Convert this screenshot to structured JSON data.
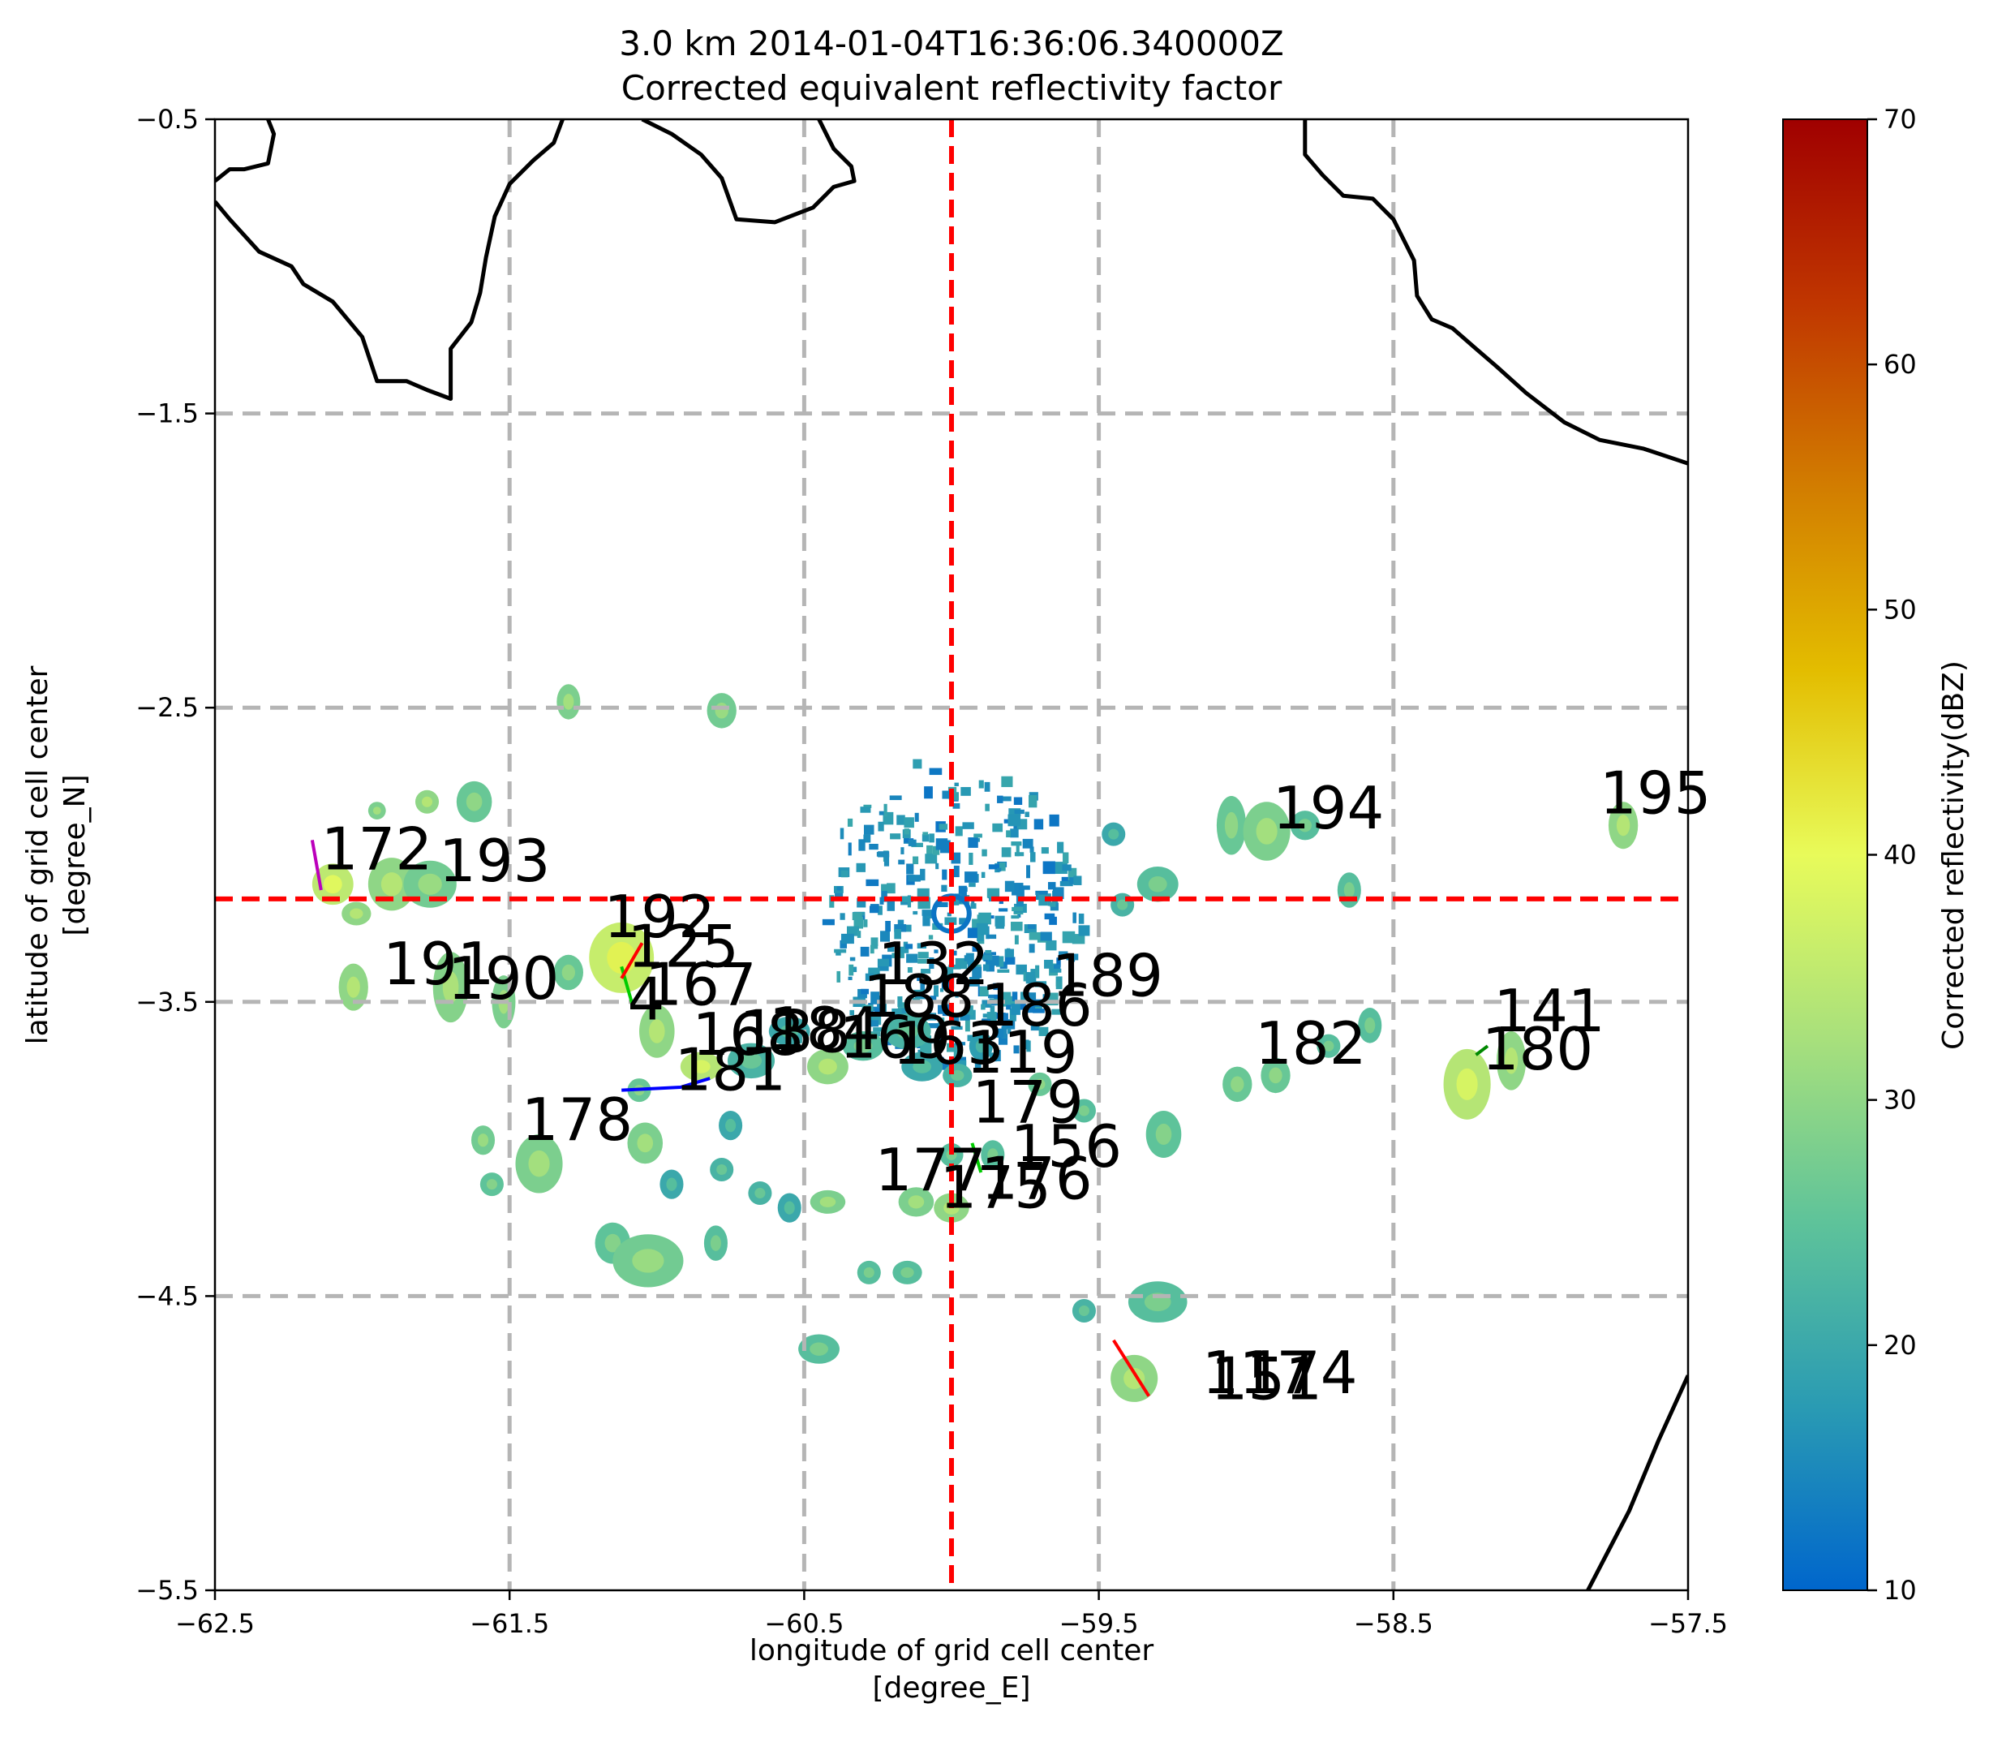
{
  "chart_data": {
    "type": "map-heatmap",
    "title": "3.0 km 2014-01-04T16:36:06.340000Z",
    "subtitle": "Corrected equivalent reflectivity factor",
    "xlabel": "longitude of grid cell center",
    "xlabel_unit": "[degree_E]",
    "ylabel": "latitude of grid cell center",
    "ylabel_unit": "[degree_N]",
    "xlim": [
      -62.5,
      -57.5
    ],
    "ylim": [
      -5.5,
      -0.5
    ],
    "xticks": [
      -62.5,
      -61.5,
      -60.5,
      -59.5,
      -58.5,
      -57.5
    ],
    "xtick_labels": [
      "−62.5",
      "−61.5",
      "−60.5",
      "−59.5",
      "−58.5",
      "−57.5"
    ],
    "yticks": [
      -5.5,
      -4.5,
      -3.5,
      -2.5,
      -1.5,
      -0.5
    ],
    "ytick_labels": [
      "−5.5",
      "−4.5",
      "−3.5",
      "−2.5",
      "−1.5",
      "−0.5"
    ],
    "grid_x": [
      -61.5,
      -60.5,
      -59.5,
      -58.5
    ],
    "grid_y": [
      -4.5,
      -3.5,
      -2.5,
      -1.5
    ],
    "grid": true,
    "crosshair": {
      "lon": -60.0,
      "lat": -3.15,
      "color": "#ff0000"
    },
    "colorbar": {
      "label": "Corrected reflectivity(dBZ)",
      "vmin": 10,
      "vmax": 70,
      "ticks": [
        10,
        20,
        30,
        40,
        50,
        60,
        70
      ],
      "colors": [
        "#0066cc",
        "#2a9bb3",
        "#5ec39a",
        "#a8e07c",
        "#e8fb5a",
        "#e3bd00",
        "#d27d00",
        "#c03600",
        "#a00000"
      ]
    },
    "coastlines": [
      [
        [
          -62.5,
          -0.78
        ],
        [
          -62.45,
          -0.84
        ],
        [
          -62.35,
          -0.95
        ],
        [
          -62.24,
          -1.0
        ],
        [
          -62.2,
          -1.06
        ],
        [
          -62.1,
          -1.12
        ],
        [
          -62.0,
          -1.24
        ],
        [
          -61.95,
          -1.39
        ],
        [
          -61.85,
          -1.39
        ],
        [
          -61.78,
          -1.42
        ],
        [
          -61.7,
          -1.45
        ],
        [
          -61.7,
          -1.28
        ],
        [
          -61.63,
          -1.19
        ],
        [
          -61.6,
          -1.09
        ],
        [
          -61.58,
          -0.97
        ],
        [
          -61.55,
          -0.83
        ],
        [
          -61.5,
          -0.72
        ],
        [
          -61.42,
          -0.64
        ],
        [
          -61.35,
          -0.58
        ],
        [
          -61.32,
          -0.5
        ]
      ],
      [
        [
          -62.5,
          -0.71
        ],
        [
          -62.45,
          -0.67
        ],
        [
          -62.4,
          -0.67
        ],
        [
          -62.32,
          -0.65
        ],
        [
          -62.3,
          -0.55
        ],
        [
          -62.32,
          -0.5
        ]
      ],
      [
        [
          -61.05,
          -0.5
        ],
        [
          -60.95,
          -0.55
        ],
        [
          -60.85,
          -0.62
        ],
        [
          -60.78,
          -0.7
        ],
        [
          -60.73,
          -0.84
        ],
        [
          -60.6,
          -0.85
        ],
        [
          -60.47,
          -0.8
        ],
        [
          -60.4,
          -0.73
        ],
        [
          -60.33,
          -0.71
        ],
        [
          -60.34,
          -0.66
        ],
        [
          -60.4,
          -0.6
        ],
        [
          -60.45,
          -0.5
        ]
      ],
      [
        [
          -58.8,
          -0.5
        ],
        [
          -58.8,
          -0.62
        ],
        [
          -58.74,
          -0.69
        ],
        [
          -58.67,
          -0.76
        ],
        [
          -58.57,
          -0.77
        ],
        [
          -58.5,
          -0.84
        ],
        [
          -58.43,
          -0.98
        ],
        [
          -58.42,
          -1.1
        ],
        [
          -58.37,
          -1.18
        ],
        [
          -58.3,
          -1.21
        ],
        [
          -58.22,
          -1.28
        ],
        [
          -58.15,
          -1.34
        ],
        [
          -58.05,
          -1.43
        ],
        [
          -57.92,
          -1.53
        ],
        [
          -57.8,
          -1.59
        ],
        [
          -57.65,
          -1.62
        ],
        [
          -57.5,
          -1.67
        ]
      ],
      [
        [
          -57.5,
          -4.77
        ],
        [
          -57.6,
          -4.99
        ],
        [
          -57.7,
          -5.23
        ],
        [
          -57.84,
          -5.5
        ]
      ]
    ],
    "echo_cells": [
      {
        "lon": -62.1,
        "lat": -3.1,
        "rx": 0.07,
        "ry": 0.07,
        "dbz": 35
      },
      {
        "lon": -62.02,
        "lat": -3.2,
        "rx": 0.05,
        "ry": 0.04,
        "dbz": 30
      },
      {
        "lon": -61.9,
        "lat": -3.1,
        "rx": 0.08,
        "ry": 0.09,
        "dbz": 30
      },
      {
        "lon": -61.77,
        "lat": -3.1,
        "rx": 0.09,
        "ry": 0.08,
        "dbz": 27
      },
      {
        "lon": -61.62,
        "lat": -2.82,
        "rx": 0.06,
        "ry": 0.07,
        "dbz": 26
      },
      {
        "lon": -61.78,
        "lat": -2.82,
        "rx": 0.04,
        "ry": 0.04,
        "dbz": 30
      },
      {
        "lon": -61.95,
        "lat": -2.85,
        "rx": 0.03,
        "ry": 0.03,
        "dbz": 28
      },
      {
        "lon": -61.3,
        "lat": -2.48,
        "rx": 0.04,
        "ry": 0.06,
        "dbz": 28
      },
      {
        "lon": -60.78,
        "lat": -2.51,
        "rx": 0.05,
        "ry": 0.06,
        "dbz": 27
      },
      {
        "lon": -62.03,
        "lat": -3.45,
        "rx": 0.05,
        "ry": 0.08,
        "dbz": 30
      },
      {
        "lon": -61.7,
        "lat": -3.45,
        "rx": 0.06,
        "ry": 0.12,
        "dbz": 29
      },
      {
        "lon": -61.52,
        "lat": -3.5,
        "rx": 0.04,
        "ry": 0.09,
        "dbz": 28
      },
      {
        "lon": -61.3,
        "lat": -3.4,
        "rx": 0.05,
        "ry": 0.06,
        "dbz": 26
      },
      {
        "lon": -61.12,
        "lat": -3.35,
        "rx": 0.11,
        "ry": 0.12,
        "dbz": 36
      },
      {
        "lon": -61.0,
        "lat": -3.6,
        "rx": 0.06,
        "ry": 0.09,
        "dbz": 30
      },
      {
        "lon": -60.85,
        "lat": -3.72,
        "rx": 0.07,
        "ry": 0.05,
        "dbz": 34
      },
      {
        "lon": -60.68,
        "lat": -3.7,
        "rx": 0.08,
        "ry": 0.06,
        "dbz": 22
      },
      {
        "lon": -60.55,
        "lat": -3.6,
        "rx": 0.07,
        "ry": 0.05,
        "dbz": 20
      },
      {
        "lon": -60.42,
        "lat": -3.72,
        "rx": 0.07,
        "ry": 0.06,
        "dbz": 30
      },
      {
        "lon": -60.3,
        "lat": -3.65,
        "rx": 0.07,
        "ry": 0.05,
        "dbz": 24
      },
      {
        "lon": -60.15,
        "lat": -3.6,
        "rx": 0.08,
        "ry": 0.06,
        "dbz": 22
      },
      {
        "lon": -60.1,
        "lat": -3.72,
        "rx": 0.07,
        "ry": 0.05,
        "dbz": 20
      },
      {
        "lon": -59.98,
        "lat": -3.75,
        "rx": 0.05,
        "ry": 0.04,
        "dbz": 22
      },
      {
        "lon": -59.9,
        "lat": -3.65,
        "rx": 0.04,
        "ry": 0.05,
        "dbz": 18
      },
      {
        "lon": -61.06,
        "lat": -3.8,
        "rx": 0.04,
        "ry": 0.04,
        "dbz": 26
      },
      {
        "lon": -61.04,
        "lat": -3.98,
        "rx": 0.06,
        "ry": 0.07,
        "dbz": 28
      },
      {
        "lon": -61.4,
        "lat": -4.05,
        "rx": 0.08,
        "ry": 0.1,
        "dbz": 28
      },
      {
        "lon": -61.59,
        "lat": -3.97,
        "rx": 0.04,
        "ry": 0.05,
        "dbz": 27
      },
      {
        "lon": -61.56,
        "lat": -4.12,
        "rx": 0.04,
        "ry": 0.04,
        "dbz": 25
      },
      {
        "lon": -60.75,
        "lat": -3.92,
        "rx": 0.04,
        "ry": 0.05,
        "dbz": 20
      },
      {
        "lon": -60.78,
        "lat": -4.07,
        "rx": 0.04,
        "ry": 0.04,
        "dbz": 22
      },
      {
        "lon": -60.95,
        "lat": -4.12,
        "rx": 0.04,
        "ry": 0.05,
        "dbz": 20
      },
      {
        "lon": -60.65,
        "lat": -4.15,
        "rx": 0.04,
        "ry": 0.04,
        "dbz": 22
      },
      {
        "lon": -60.55,
        "lat": -4.2,
        "rx": 0.04,
        "ry": 0.05,
        "dbz": 20
      },
      {
        "lon": -60.42,
        "lat": -4.18,
        "rx": 0.06,
        "ry": 0.04,
        "dbz": 28
      },
      {
        "lon": -60.12,
        "lat": -4.18,
        "rx": 0.06,
        "ry": 0.05,
        "dbz": 28
      },
      {
        "lon": -60.0,
        "lat": -4.2,
        "rx": 0.06,
        "ry": 0.05,
        "dbz": 30
      },
      {
        "lon": -59.86,
        "lat": -4.02,
        "rx": 0.04,
        "ry": 0.05,
        "dbz": 24
      },
      {
        "lon": -60.0,
        "lat": -4.02,
        "rx": 0.04,
        "ry": 0.04,
        "dbz": 24
      },
      {
        "lon": -61.15,
        "lat": -4.32,
        "rx": 0.06,
        "ry": 0.07,
        "dbz": 25
      },
      {
        "lon": -61.03,
        "lat": -4.38,
        "rx": 0.12,
        "ry": 0.09,
        "dbz": 27
      },
      {
        "lon": -60.8,
        "lat": -4.32,
        "rx": 0.04,
        "ry": 0.06,
        "dbz": 24
      },
      {
        "lon": -60.28,
        "lat": -4.42,
        "rx": 0.04,
        "ry": 0.04,
        "dbz": 24
      },
      {
        "lon": -60.15,
        "lat": -4.42,
        "rx": 0.05,
        "ry": 0.04,
        "dbz": 24
      },
      {
        "lon": -60.45,
        "lat": -4.68,
        "rx": 0.07,
        "ry": 0.05,
        "dbz": 24
      },
      {
        "lon": -59.55,
        "lat": -4.55,
        "rx": 0.04,
        "ry": 0.04,
        "dbz": 22
      },
      {
        "lon": -59.3,
        "lat": -4.52,
        "rx": 0.1,
        "ry": 0.07,
        "dbz": 24
      },
      {
        "lon": -59.38,
        "lat": -4.78,
        "rx": 0.08,
        "ry": 0.08,
        "dbz": 30
      },
      {
        "lon": -59.28,
        "lat": -3.95,
        "rx": 0.06,
        "ry": 0.08,
        "dbz": 25
      },
      {
        "lon": -59.55,
        "lat": -3.87,
        "rx": 0.04,
        "ry": 0.04,
        "dbz": 24
      },
      {
        "lon": -59.7,
        "lat": -3.78,
        "rx": 0.04,
        "ry": 0.04,
        "dbz": 26
      },
      {
        "lon": -59.3,
        "lat": -3.1,
        "rx": 0.07,
        "ry": 0.06,
        "dbz": 24
      },
      {
        "lon": -59.42,
        "lat": -3.17,
        "rx": 0.04,
        "ry": 0.04,
        "dbz": 22
      },
      {
        "lon": -59.45,
        "lat": -2.93,
        "rx": 0.04,
        "ry": 0.04,
        "dbz": 20
      },
      {
        "lon": -59.05,
        "lat": -2.9,
        "rx": 0.05,
        "ry": 0.1,
        "dbz": 26
      },
      {
        "lon": -58.93,
        "lat": -2.92,
        "rx": 0.08,
        "ry": 0.1,
        "dbz": 28
      },
      {
        "lon": -58.8,
        "lat": -2.9,
        "rx": 0.05,
        "ry": 0.05,
        "dbz": 24
      },
      {
        "lon": -58.65,
        "lat": -3.12,
        "rx": 0.04,
        "ry": 0.06,
        "dbz": 24
      },
      {
        "lon": -58.58,
        "lat": -3.58,
        "rx": 0.04,
        "ry": 0.06,
        "dbz": 24
      },
      {
        "lon": -58.72,
        "lat": -3.65,
        "rx": 0.04,
        "ry": 0.04,
        "dbz": 24
      },
      {
        "lon": -58.9,
        "lat": -3.75,
        "rx": 0.05,
        "ry": 0.06,
        "dbz": 26
      },
      {
        "lon": -59.03,
        "lat": -3.78,
        "rx": 0.05,
        "ry": 0.06,
        "dbz": 26
      },
      {
        "lon": -58.25,
        "lat": -3.78,
        "rx": 0.08,
        "ry": 0.12,
        "dbz": 34
      },
      {
        "lon": -58.1,
        "lat": -3.7,
        "rx": 0.05,
        "ry": 0.1,
        "dbz": 30
      },
      {
        "lon": -57.72,
        "lat": -2.9,
        "rx": 0.05,
        "ry": 0.08,
        "dbz": 30
      }
    ],
    "radar_clutter": {
      "lon": -60.0,
      "lat": -3.2,
      "ring_lon": 0.06,
      "ring_lat": 0.06,
      "extent_lon": 0.45,
      "extent_lat": 0.55,
      "dbz": 12
    },
    "cell_labels": [
      {
        "text": "172",
        "lon": -62.14,
        "lat": -3.05
      },
      {
        "text": "193",
        "lon": -61.74,
        "lat": -3.09
      },
      {
        "text": "192",
        "lon": -61.18,
        "lat": -3.28
      },
      {
        "text": "125",
        "lon": -61.1,
        "lat": -3.38
      },
      {
        "text": "191",
        "lon": -61.93,
        "lat": -3.44
      },
      {
        "text": "190",
        "lon": -61.71,
        "lat": -3.49
      },
      {
        "text": "167",
        "lon": -61.04,
        "lat": -3.51
      },
      {
        "text": "4",
        "lon": -61.1,
        "lat": -3.56
      },
      {
        "text": "132",
        "lon": -60.25,
        "lat": -3.44
      },
      {
        "text": "189",
        "lon": -59.66,
        "lat": -3.48
      },
      {
        "text": "186",
        "lon": -59.9,
        "lat": -3.58
      },
      {
        "text": "188",
        "lon": -60.3,
        "lat": -3.55
      },
      {
        "text": "184",
        "lon": -60.62,
        "lat": -3.66
      },
      {
        "text": "168",
        "lon": -60.88,
        "lat": -3.68
      },
      {
        "text": "138",
        "lon": -60.72,
        "lat": -3.67
      },
      {
        "text": "169",
        "lon": -60.38,
        "lat": -3.69
      },
      {
        "text": "163",
        "lon": -60.2,
        "lat": -3.71
      },
      {
        "text": "119",
        "lon": -59.95,
        "lat": -3.74
      },
      {
        "text": "181",
        "lon": -60.94,
        "lat": -3.8
      },
      {
        "text": "179",
        "lon": -59.93,
        "lat": -3.91
      },
      {
        "text": "178",
        "lon": -61.46,
        "lat": -3.97
      },
      {
        "text": "156",
        "lon": -59.8,
        "lat": -4.06
      },
      {
        "text": "177",
        "lon": -60.26,
        "lat": -4.14
      },
      {
        "text": "176",
        "lon": -59.9,
        "lat": -4.17
      },
      {
        "text": "175",
        "lon": -60.04,
        "lat": -4.2
      },
      {
        "text": "141",
        "lon": -58.16,
        "lat": -3.6
      },
      {
        "text": "180",
        "lon": -58.2,
        "lat": -3.73
      },
      {
        "text": "182",
        "lon": -58.97,
        "lat": -3.71
      },
      {
        "text": "194",
        "lon": -58.91,
        "lat": -2.91
      },
      {
        "text": "195",
        "lon": -57.8,
        "lat": -2.86
      },
      {
        "text": "151",
        "lon": -59.12,
        "lat": -4.85
      },
      {
        "text": "174",
        "lon": -59.0,
        "lat": -4.83
      },
      {
        "text": "117",
        "lon": -59.15,
        "lat": -4.83
      }
    ],
    "tracks": [
      {
        "color": "#bb00bb",
        "points": [
          [
            -62.17,
            -2.95
          ],
          [
            -62.14,
            -3.12
          ]
        ]
      },
      {
        "color": "#00cc00",
        "points": [
          [
            -61.12,
            -3.38
          ],
          [
            -61.08,
            -3.52
          ]
        ]
      },
      {
        "color": "#ff0000",
        "points": [
          [
            -61.05,
            -3.3
          ],
          [
            -61.12,
            -3.42
          ]
        ]
      },
      {
        "color": "#0000ff",
        "points": [
          [
            -61.12,
            -3.8
          ],
          [
            -60.92,
            -3.79
          ],
          [
            -60.82,
            -3.76
          ]
        ]
      },
      {
        "color": "#00cc00",
        "points": [
          [
            -59.93,
            -3.98
          ],
          [
            -59.9,
            -4.08
          ]
        ]
      },
      {
        "color": "#ff0000",
        "points": [
          [
            -59.45,
            -4.65
          ],
          [
            -59.33,
            -4.84
          ]
        ]
      },
      {
        "color": "#008800",
        "points": [
          [
            -58.22,
            -3.68
          ],
          [
            -58.18,
            -3.65
          ]
        ]
      }
    ]
  }
}
